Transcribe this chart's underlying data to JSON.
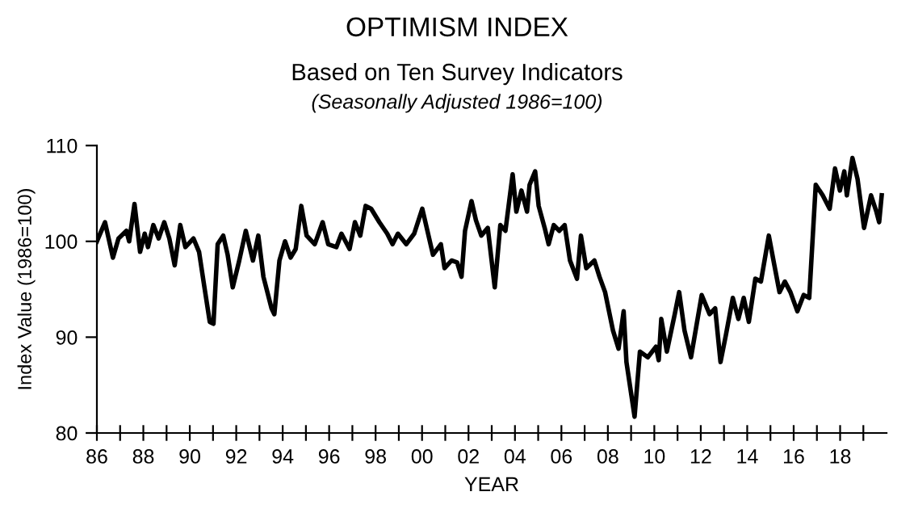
{
  "chart_data": {
    "type": "line",
    "title": "OPTIMISM INDEX",
    "subtitle": "Based on Ten Survey Indicators",
    "annotations": [
      "(Seasonally Adjusted 1986=100)"
    ],
    "xlabel": "YEAR",
    "ylabel": "Index Value (1986=100)",
    "x": [
      1986.0,
      1986.35,
      1986.69,
      1986.93,
      1987.27,
      1987.39,
      1987.62,
      1987.86,
      1988.06,
      1988.2,
      1988.43,
      1988.66,
      1988.9,
      1989.12,
      1989.35,
      1989.59,
      1989.81,
      1990.16,
      1990.4,
      1990.63,
      1990.86,
      1991.02,
      1991.2,
      1991.44,
      1991.63,
      1991.85,
      1992.13,
      1992.41,
      1992.72,
      1992.95,
      1993.17,
      1993.52,
      1993.64,
      1993.86,
      1994.1,
      1994.34,
      1994.56,
      1994.8,
      1995.03,
      1995.38,
      1995.72,
      1995.96,
      1996.31,
      1996.53,
      1996.88,
      1997.11,
      1997.34,
      1997.57,
      1997.81,
      1998.16,
      1998.5,
      1998.73,
      1998.96,
      1999.32,
      1999.66,
      2000.01,
      2000.47,
      2000.81,
      2000.97,
      2001.27,
      2001.51,
      2001.7,
      2001.85,
      2002.13,
      2002.32,
      2002.55,
      2002.83,
      2003.13,
      2003.37,
      2003.59,
      2003.9,
      2004.06,
      2004.28,
      2004.52,
      2004.63,
      2004.87,
      2005.02,
      2005.28,
      2005.45,
      2005.67,
      2005.91,
      2006.14,
      2006.37,
      2006.67,
      2006.84,
      2007.07,
      2007.42,
      2007.64,
      2007.88,
      2008.22,
      2008.46,
      2008.68,
      2008.8,
      2009.15,
      2009.38,
      2009.72,
      2010.07,
      2010.19,
      2010.3,
      2010.54,
      2010.88,
      2011.07,
      2011.3,
      2011.58,
      2012.04,
      2012.38,
      2012.62,
      2012.85,
      2013.08,
      2013.38,
      2013.62,
      2013.85,
      2014.07,
      2014.35,
      2014.59,
      2014.93,
      2015.17,
      2015.39,
      2015.62,
      2015.86,
      2016.16,
      2016.43,
      2016.67,
      2016.95,
      2017.25,
      2017.55,
      2017.78,
      2017.99,
      2018.18,
      2018.29,
      2018.53,
      2018.75,
      2019.03,
      2019.33,
      2019.56,
      2019.68,
      2019.79
    ],
    "series": [
      {
        "color": "#000000",
        "values": [
          100,
          102,
          98.3,
          100.3,
          101.1,
          100,
          103.9,
          98.9,
          100.8,
          99.4,
          101.7,
          100.3,
          102,
          100.3,
          97.5,
          101.7,
          99.4,
          100.3,
          98.9,
          95.2,
          91.6,
          91.4,
          99.7,
          100.6,
          98.6,
          95.2,
          98,
          101.1,
          98,
          100.6,
          96.3,
          93,
          92.4,
          98,
          100,
          98.3,
          99.2,
          103.7,
          100.6,
          99.7,
          102,
          99.7,
          99.4,
          100.8,
          99.2,
          102,
          100.6,
          103.7,
          103.4,
          102,
          100.8,
          99.7,
          100.8,
          99.7,
          100.8,
          103.4,
          98.6,
          99.7,
          97.2,
          98,
          97.8,
          96.3,
          101.1,
          104.2,
          102.2,
          100.6,
          101.4,
          95.2,
          101.7,
          101.1,
          107,
          103.1,
          105.3,
          103.1,
          105.9,
          107.3,
          103.7,
          101.4,
          99.7,
          101.7,
          101.1,
          101.7,
          98,
          96.1,
          100.6,
          97.2,
          98,
          96.3,
          94.7,
          90.7,
          88.8,
          92.7,
          87.4,
          81.7,
          88.5,
          87.9,
          89,
          87.6,
          91.9,
          88.5,
          92.4,
          94.7,
          90.7,
          87.9,
          94.4,
          92.4,
          93,
          87.4,
          90.2,
          94.1,
          91.9,
          94.1,
          91.6,
          96.1,
          95.8,
          100.6,
          97.5,
          94.7,
          95.8,
          94.7,
          92.7,
          94.4,
          94.1,
          105.9,
          104.8,
          103.4,
          107.6,
          105.3,
          107.3,
          104.8,
          108.7,
          106.5,
          101.4,
          104.8,
          103.1,
          102,
          104.8
        ]
      }
    ],
    "xlim": [
      1986,
      2020
    ],
    "xticks": [
      {
        "value": 1986,
        "label": "86"
      },
      {
        "value": 1987,
        "label": null
      },
      {
        "value": 1988,
        "label": "88"
      },
      {
        "value": 1989,
        "label": null
      },
      {
        "value": 1990,
        "label": "90"
      },
      {
        "value": 1991,
        "label": null
      },
      {
        "value": 1992,
        "label": "92"
      },
      {
        "value": 1993,
        "label": null
      },
      {
        "value": 1994,
        "label": "94"
      },
      {
        "value": 1995,
        "label": null
      },
      {
        "value": 1996,
        "label": "96"
      },
      {
        "value": 1997,
        "label": null
      },
      {
        "value": 1998,
        "label": "98"
      },
      {
        "value": 1999,
        "label": null
      },
      {
        "value": 2000,
        "label": "00"
      },
      {
        "value": 2001,
        "label": null
      },
      {
        "value": 2002,
        "label": "02"
      },
      {
        "value": 2003,
        "label": null
      },
      {
        "value": 2004,
        "label": "04"
      },
      {
        "value": 2005,
        "label": null
      },
      {
        "value": 2006,
        "label": "06"
      },
      {
        "value": 2007,
        "label": null
      },
      {
        "value": 2008,
        "label": "08"
      },
      {
        "value": 2009,
        "label": null
      },
      {
        "value": 2010,
        "label": "10"
      },
      {
        "value": 2011,
        "label": null
      },
      {
        "value": 2012,
        "label": "12"
      },
      {
        "value": 2013,
        "label": null
      },
      {
        "value": 2014,
        "label": "14"
      },
      {
        "value": 2015,
        "label": null
      },
      {
        "value": 2016,
        "label": "16"
      },
      {
        "value": 2017,
        "label": null
      },
      {
        "value": 2018,
        "label": "18"
      },
      {
        "value": 2019,
        "label": null
      }
    ],
    "ylim": [
      80,
      110
    ],
    "yticks": [
      80,
      90,
      100,
      110
    ],
    "grid": false,
    "legend": false,
    "marker": "none",
    "line_style": "solid"
  }
}
